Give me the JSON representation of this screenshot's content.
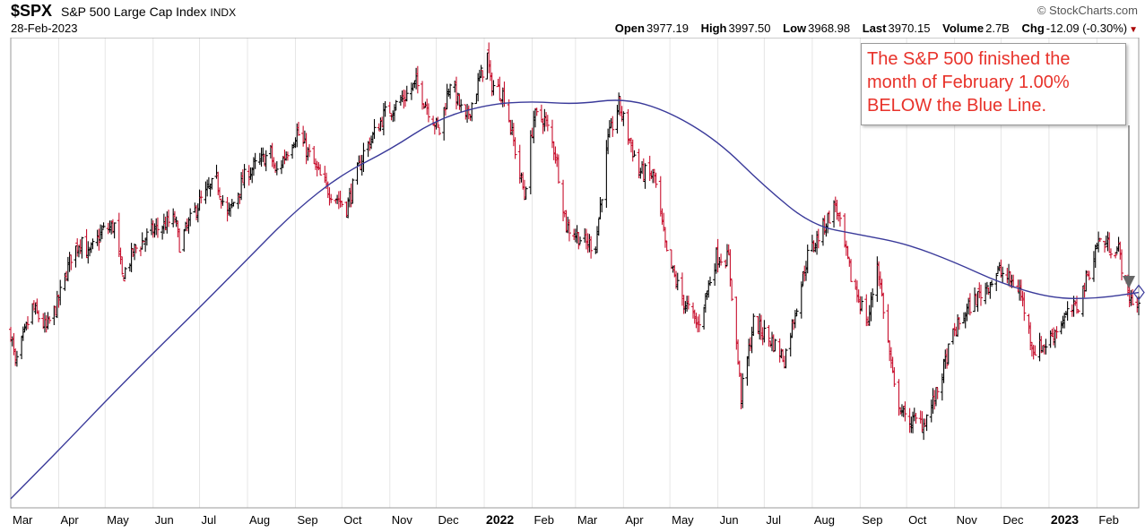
{
  "header": {
    "symbol": "$SPX",
    "name": "S&P 500 Large Cap Index",
    "exchange": "INDX",
    "date": "28-Feb-2023",
    "credit": "© StockCharts.com",
    "open_label": "Open",
    "open": "3977.19",
    "high_label": "High",
    "high": "3997.50",
    "low_label": "Low",
    "low": "3968.98",
    "last_label": "Last",
    "last": "3970.15",
    "volume_label": "Volume",
    "volume": "2.7B",
    "chg_label": "Chg",
    "chg": "-12.09 (-0.30%)"
  },
  "annotation": {
    "text": "The S&P 500 finished the month of February 1.00% BELOW the Blue Line."
  },
  "colors": {
    "up": "#000000",
    "down": "#c8102e",
    "ma_line": "#3a3a9a",
    "grid": "#e6e6e6",
    "annotation_text": "#e8322a"
  },
  "chart_data": {
    "type": "line",
    "x_tick_labels": [
      "Mar",
      "Apr",
      "May",
      "Jun",
      "Jul",
      "Aug",
      "Sep",
      "Oct",
      "Nov",
      "Dec",
      "2022",
      "Feb",
      "Mar",
      "Apr",
      "May",
      "Jun",
      "Jul",
      "Aug",
      "Sep",
      "Oct",
      "Nov",
      "Dec",
      "2023",
      "Feb"
    ],
    "bold_ticks": [
      "2022",
      "2023"
    ],
    "price_series": {
      "name": "",
      "points": [
        [
          "2021-03-01",
          3880
        ],
        [
          "2021-03-04",
          3770
        ],
        [
          "2021-03-15",
          3960
        ],
        [
          "2021-03-24",
          3890
        ],
        [
          "2021-03-31",
          3970
        ],
        [
          "2021-04-09",
          4130
        ],
        [
          "2021-04-16",
          4190
        ],
        [
          "2021-04-20",
          4130
        ],
        [
          "2021-04-29",
          4210
        ],
        [
          "2021-05-07",
          4230
        ],
        [
          "2021-05-12",
          4060
        ],
        [
          "2021-05-20",
          4150
        ],
        [
          "2021-05-31",
          4210
        ],
        [
          "2021-06-15",
          4250
        ],
        [
          "2021-06-18",
          4170
        ],
        [
          "2021-06-30",
          4300
        ],
        [
          "2021-07-12",
          4380
        ],
        [
          "2021-07-19",
          4260
        ],
        [
          "2021-07-31",
          4400
        ],
        [
          "2021-08-16",
          4470
        ],
        [
          "2021-08-19",
          4400
        ],
        [
          "2021-08-31",
          4520
        ],
        [
          "2021-09-02",
          4540
        ],
        [
          "2021-09-10",
          4460
        ],
        [
          "2021-09-20",
          4360
        ],
        [
          "2021-09-30",
          4310
        ],
        [
          "2021-10-04",
          4290
        ],
        [
          "2021-10-15",
          4470
        ],
        [
          "2021-10-29",
          4600
        ],
        [
          "2021-11-10",
          4650
        ],
        [
          "2021-11-18",
          4700
        ],
        [
          "2021-11-30",
          4570
        ],
        [
          "2021-12-03",
          4540
        ],
        [
          "2021-12-10",
          4710
        ],
        [
          "2021-12-20",
          4570
        ],
        [
          "2022-01-03",
          4790
        ],
        [
          "2022-01-05",
          4700
        ],
        [
          "2022-01-14",
          4660
        ],
        [
          "2022-01-24",
          4400
        ],
        [
          "2022-01-27",
          4330
        ],
        [
          "2022-02-02",
          4590
        ],
        [
          "2022-02-09",
          4580
        ],
        [
          "2022-02-16",
          4470
        ],
        [
          "2022-02-23",
          4230
        ],
        [
          "2022-03-08",
          4170
        ],
        [
          "2022-03-14",
          4170
        ],
        [
          "2022-03-22",
          4510
        ],
        [
          "2022-03-29",
          4630
        ],
        [
          "2022-04-11",
          4410
        ],
        [
          "2022-04-21",
          4390
        ],
        [
          "2022-04-29",
          4130
        ],
        [
          "2022-05-09",
          3990
        ],
        [
          "2022-05-19",
          3900
        ],
        [
          "2022-05-31",
          4130
        ],
        [
          "2022-06-08",
          4120
        ],
        [
          "2022-06-16",
          3670
        ],
        [
          "2022-06-24",
          3910
        ],
        [
          "2022-07-06",
          3850
        ],
        [
          "2022-07-14",
          3790
        ],
        [
          "2022-07-29",
          4130
        ],
        [
          "2022-08-16",
          4300
        ],
        [
          "2022-08-26",
          4060
        ],
        [
          "2022-09-06",
          3910
        ],
        [
          "2022-09-12",
          4110
        ],
        [
          "2022-09-23",
          3690
        ],
        [
          "2022-09-30",
          3590
        ],
        [
          "2022-10-12",
          3580
        ],
        [
          "2022-10-20",
          3670
        ],
        [
          "2022-10-31",
          3870
        ],
        [
          "2022-11-10",
          3960
        ],
        [
          "2022-11-30",
          4080
        ],
        [
          "2022-12-13",
          4020
        ],
        [
          "2022-12-22",
          3820
        ],
        [
          "2022-12-30",
          3840
        ],
        [
          "2023-01-10",
          3920
        ],
        [
          "2023-01-20",
          3970
        ],
        [
          "2023-02-02",
          4180
        ],
        [
          "2023-02-15",
          4150
        ],
        [
          "2023-02-21",
          4000
        ],
        [
          "2023-02-28",
          3970
        ]
      ]
    },
    "ma_series": {
      "name": "",
      "points": [
        [
          "2021-03-01",
          3330
        ],
        [
          "2021-04-01",
          3490
        ],
        [
          "2021-05-01",
          3650
        ],
        [
          "2021-06-01",
          3810
        ],
        [
          "2021-07-01",
          3960
        ],
        [
          "2021-08-01",
          4120
        ],
        [
          "2021-09-01",
          4280
        ],
        [
          "2021-10-01",
          4400
        ],
        [
          "2021-11-01",
          4480
        ],
        [
          "2021-12-01",
          4580
        ],
        [
          "2022-01-03",
          4630
        ],
        [
          "2022-02-01",
          4640
        ],
        [
          "2022-03-01",
          4630
        ],
        [
          "2022-04-01",
          4650
        ],
        [
          "2022-04-29",
          4610
        ],
        [
          "2022-06-01",
          4510
        ],
        [
          "2022-07-01",
          4360
        ],
        [
          "2022-08-01",
          4230
        ],
        [
          "2022-09-01",
          4200
        ],
        [
          "2022-10-01",
          4170
        ],
        [
          "2022-11-01",
          4110
        ],
        [
          "2022-12-01",
          4040
        ],
        [
          "2023-01-03",
          3990
        ],
        [
          "2023-02-01",
          3990
        ],
        [
          "2023-02-28",
          4010
        ]
      ]
    }
  }
}
